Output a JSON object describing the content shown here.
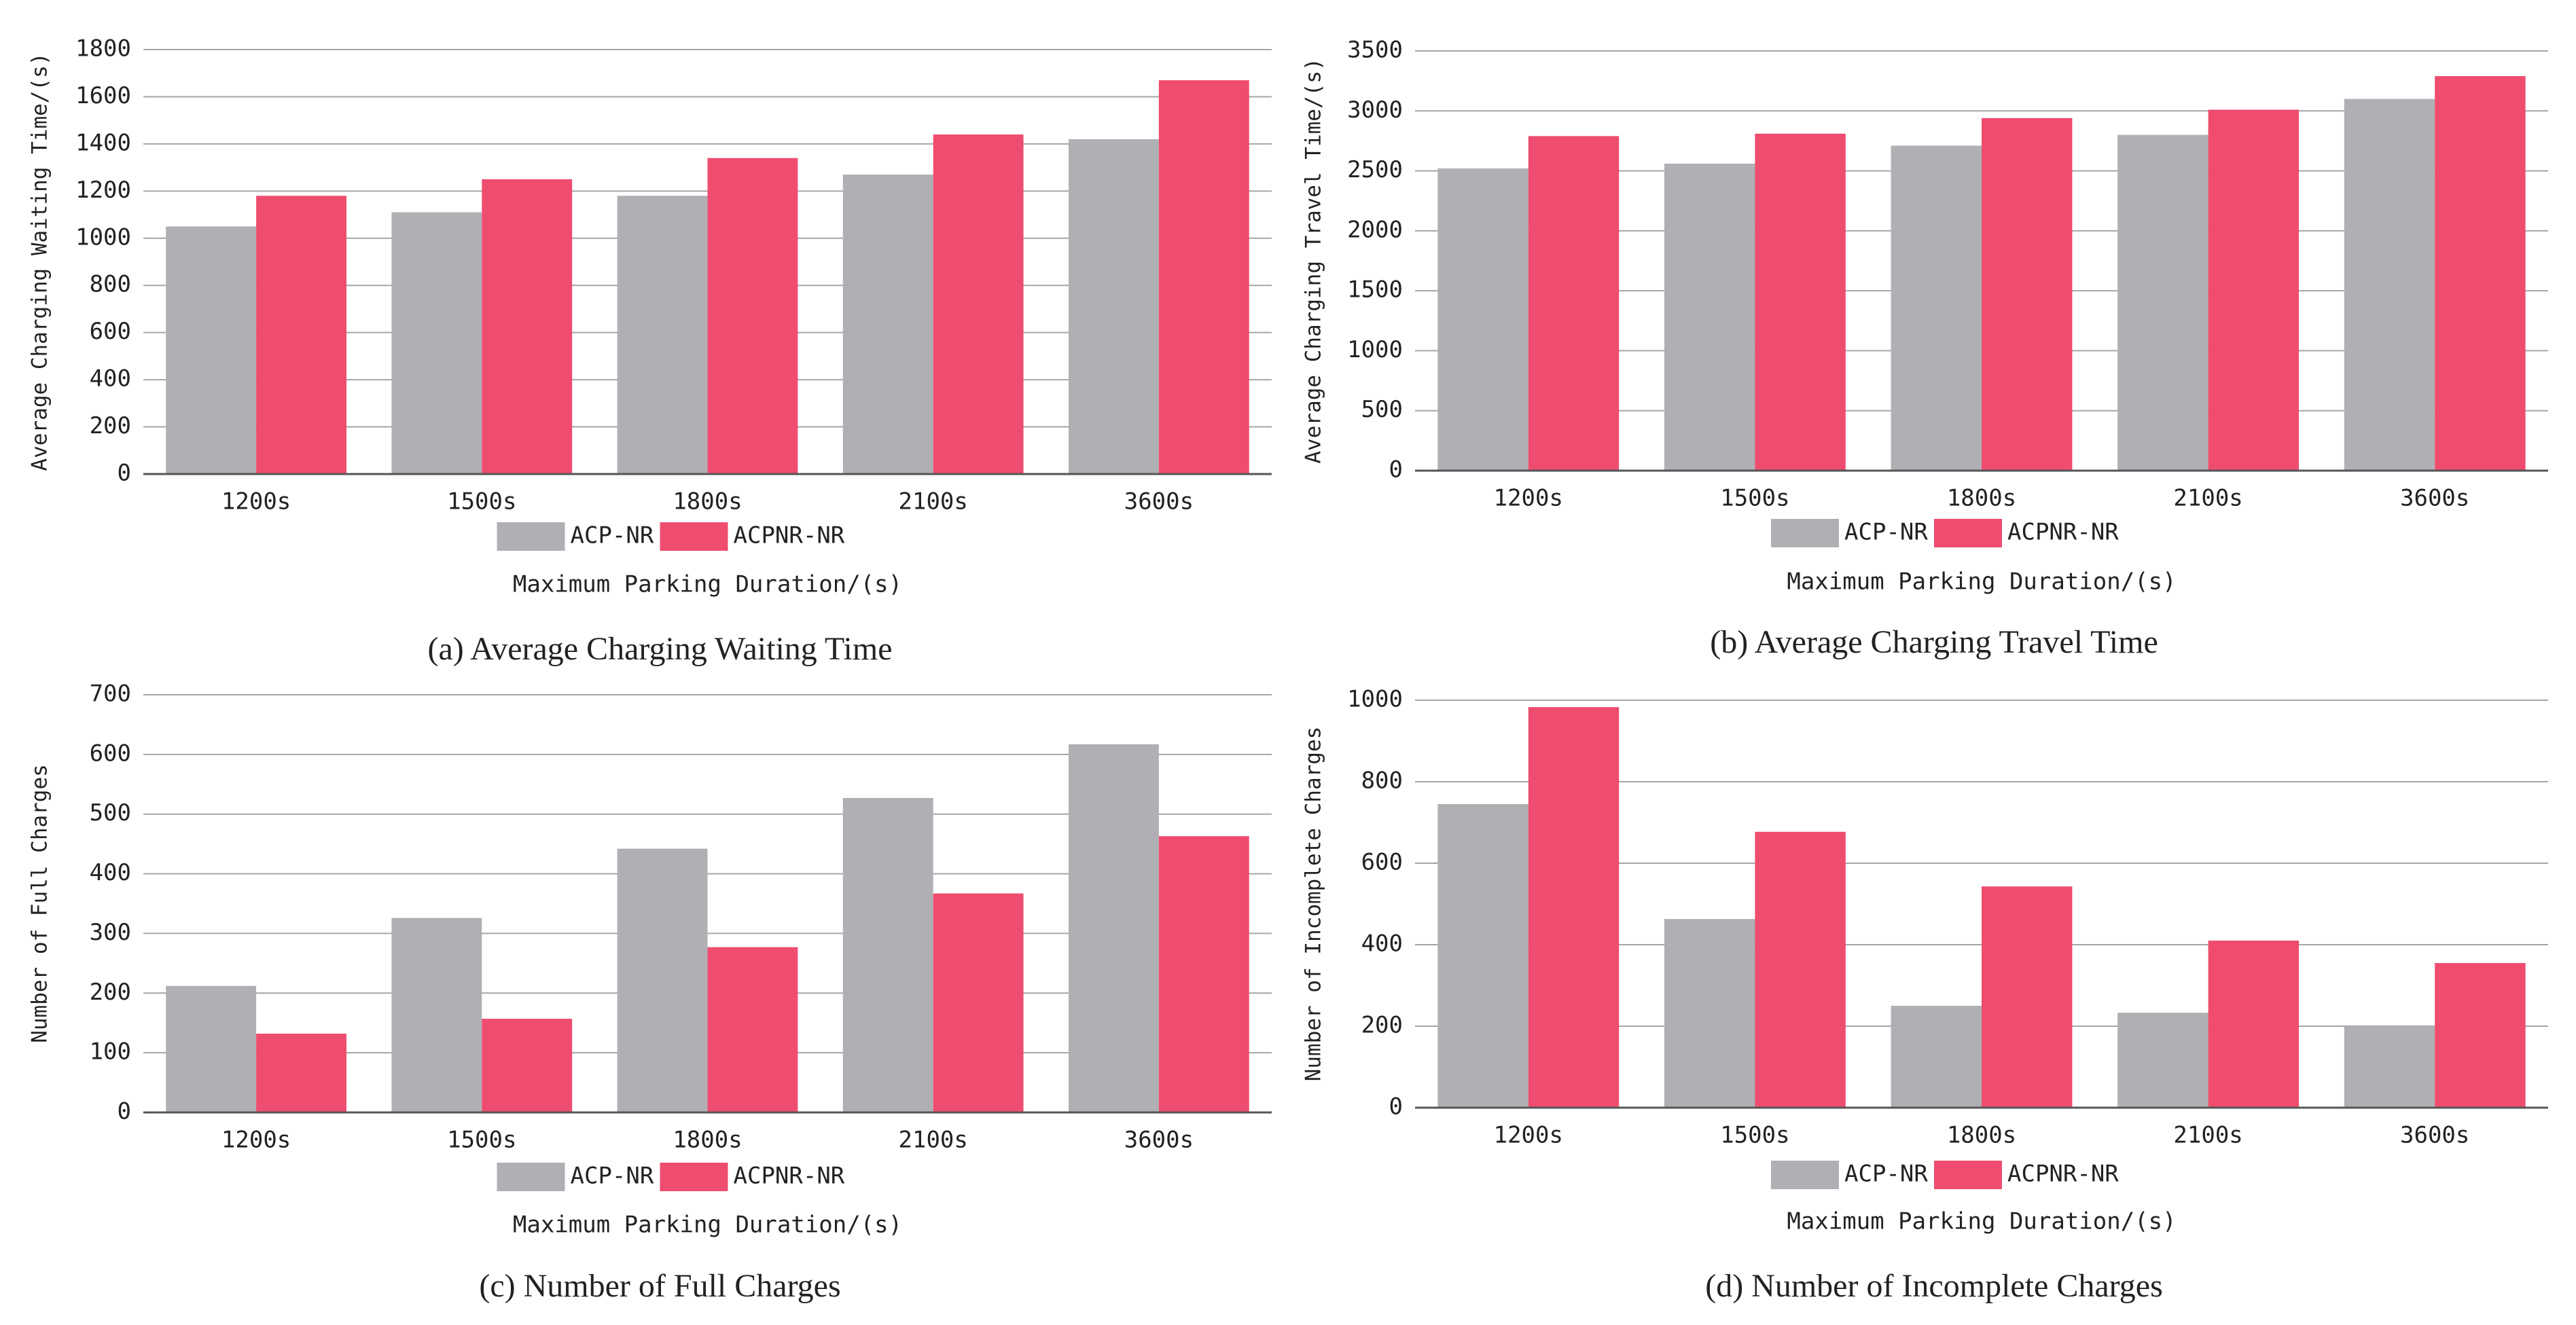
{
  "chart_data": [
    {
      "type": "bar",
      "title": "(a) Average Charging Waiting Time",
      "ylabel": "Average Charging Waiting Time/(s)",
      "xlabel": "Maximum Parking Duration/(s)",
      "categories": [
        "1200s",
        "1500s",
        "1800s",
        "2100s",
        "3600s"
      ],
      "series": [
        {
          "name": "ACP-NR",
          "color": "#b0afb4",
          "values": [
            1050,
            1110,
            1180,
            1270,
            1420
          ]
        },
        {
          "name": "ACPNR-NR",
          "color": "#ee4d70",
          "values": [
            1180,
            1250,
            1340,
            1440,
            1670
          ]
        }
      ],
      "ylim": [
        0,
        1800
      ],
      "yticks": [
        0,
        200,
        400,
        600,
        800,
        1000,
        1200,
        1400,
        1600,
        1800
      ],
      "grid": true
    },
    {
      "type": "bar",
      "title": "(b) Average Charging Travel Time",
      "ylabel": "Average Charging Travel Time/(s)",
      "xlabel": "Maximum Parking Duration/(s)",
      "categories": [
        "1200s",
        "1500s",
        "1800s",
        "2100s",
        "3600s"
      ],
      "series": [
        {
          "name": "ACP-NR",
          "color": "#b0afb4",
          "values": [
            2520,
            2560,
            2710,
            2800,
            3100
          ]
        },
        {
          "name": "ACPNR-NR",
          "color": "#ee4d70",
          "values": [
            2790,
            2810,
            2940,
            3010,
            3290
          ]
        }
      ],
      "ylim": [
        0,
        3500
      ],
      "yticks": [
        0,
        500,
        1000,
        1500,
        2000,
        2500,
        3000,
        3500
      ],
      "grid": true
    },
    {
      "type": "bar",
      "title": "(c) Number of Full Charges",
      "ylabel": "Number of Full Charges",
      "xlabel": "Maximum Parking Duration/(s)",
      "categories": [
        "1200s",
        "1500s",
        "1800s",
        "2100s",
        "3600s"
      ],
      "series": [
        {
          "name": "ACP-NR",
          "color": "#b0afb4",
          "values": [
            212,
            326,
            442,
            527,
            617
          ]
        },
        {
          "name": "ACPNR-NR",
          "color": "#ee4d70",
          "values": [
            132,
            157,
            277,
            367,
            463
          ]
        }
      ],
      "ylim": [
        0,
        700
      ],
      "yticks": [
        0,
        100,
        200,
        300,
        400,
        500,
        600,
        700
      ],
      "grid": true
    },
    {
      "type": "bar",
      "title": "(d) Number of Incomplete Charges",
      "ylabel": "Number of Incomplete Charges",
      "xlabel": "Maximum Parking Duration/(s)",
      "categories": [
        "1200s",
        "1500s",
        "1800s",
        "2100s",
        "3600s"
      ],
      "series": [
        {
          "name": "ACP-NR",
          "color": "#b0afb4",
          "values": [
            745,
            463,
            250,
            233,
            200
          ]
        },
        {
          "name": "ACPNR-NR",
          "color": "#ee4d70",
          "values": [
            983,
            677,
            543,
            410,
            355
          ]
        }
      ],
      "ylim": [
        0,
        1000
      ],
      "yticks": [
        0,
        200,
        400,
        600,
        800,
        1000
      ],
      "grid": true
    }
  ]
}
